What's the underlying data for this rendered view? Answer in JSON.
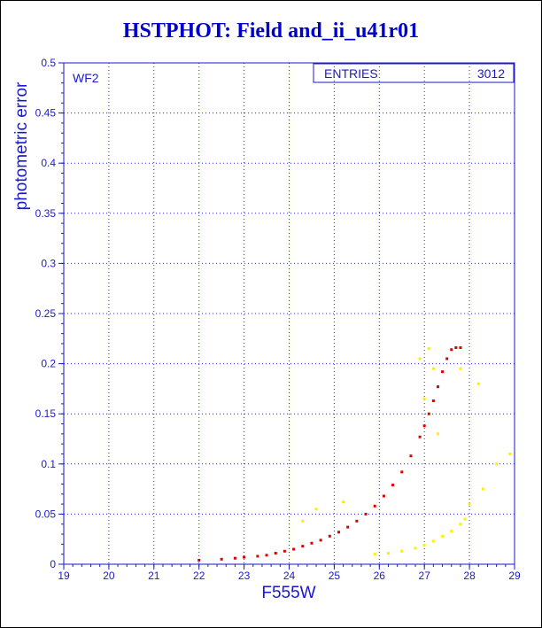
{
  "colors": {
    "title": "#0000cc",
    "axis": "#1a1acc",
    "grid": "#2a2ad0",
    "main_points": "#dd0000",
    "secondary_points": "#ffee00",
    "background": "#ffffff"
  },
  "chart_data": {
    "type": "scatter",
    "title": "HSTPHOT: Field and_ii_u41r01",
    "xlabel": "F555W",
    "ylabel": "photometric error",
    "xlim": [
      19,
      29
    ],
    "ylim": [
      0,
      0.5
    ],
    "xticks": [
      "19",
      "20",
      "21",
      "22",
      "23",
      "24",
      "25",
      "26",
      "27",
      "28",
      "29"
    ],
    "yticks": [
      "0",
      "0.05",
      "0.1",
      "0.15",
      "0.2",
      "0.25",
      "0.3",
      "0.35",
      "0.4",
      "0.45",
      "0.5"
    ],
    "grid": true,
    "panel_label": "WF2",
    "stats": {
      "label": "ENTRIES",
      "value": "3012"
    },
    "series": [
      {
        "color": "#dd0000",
        "points": [
          [
            22.0,
            0.004
          ],
          [
            22.5,
            0.005
          ],
          [
            22.8,
            0.006
          ],
          [
            23.0,
            0.007
          ],
          [
            23.3,
            0.008
          ],
          [
            23.5,
            0.009
          ],
          [
            23.7,
            0.011
          ],
          [
            23.9,
            0.013
          ],
          [
            24.1,
            0.015
          ],
          [
            24.3,
            0.018
          ],
          [
            24.5,
            0.021
          ],
          [
            24.7,
            0.024
          ],
          [
            24.9,
            0.028
          ],
          [
            25.1,
            0.032
          ],
          [
            25.3,
            0.037
          ],
          [
            25.5,
            0.043
          ],
          [
            25.7,
            0.05
          ],
          [
            25.9,
            0.058
          ],
          [
            26.1,
            0.068
          ],
          [
            26.3,
            0.079
          ],
          [
            26.5,
            0.092
          ],
          [
            26.7,
            0.108
          ],
          [
            26.9,
            0.127
          ],
          [
            27.0,
            0.138
          ],
          [
            27.1,
            0.15
          ],
          [
            27.2,
            0.163
          ],
          [
            27.3,
            0.177
          ],
          [
            27.4,
            0.192
          ],
          [
            27.5,
            0.205
          ],
          [
            27.6,
            0.214
          ],
          [
            27.7,
            0.216
          ],
          [
            27.8,
            0.216
          ]
        ]
      },
      {
        "color": "#ffee00",
        "points": [
          [
            25.9,
            0.01
          ],
          [
            26.2,
            0.011
          ],
          [
            26.5,
            0.013
          ],
          [
            26.8,
            0.016
          ],
          [
            27.0,
            0.019
          ],
          [
            27.2,
            0.023
          ],
          [
            27.4,
            0.028
          ],
          [
            27.6,
            0.033
          ],
          [
            27.8,
            0.04
          ],
          [
            27.9,
            0.045
          ],
          [
            27.0,
            0.165
          ],
          [
            27.2,
            0.195
          ],
          [
            26.9,
            0.205
          ],
          [
            27.1,
            0.215
          ],
          [
            28.0,
            0.06
          ],
          [
            28.3,
            0.075
          ],
          [
            28.6,
            0.1
          ],
          [
            28.9,
            0.11
          ],
          [
            24.6,
            0.055
          ],
          [
            24.3,
            0.043
          ],
          [
            25.2,
            0.062
          ],
          [
            27.8,
            0.195
          ],
          [
            28.2,
            0.18
          ],
          [
            27.3,
            0.13
          ]
        ]
      }
    ]
  }
}
